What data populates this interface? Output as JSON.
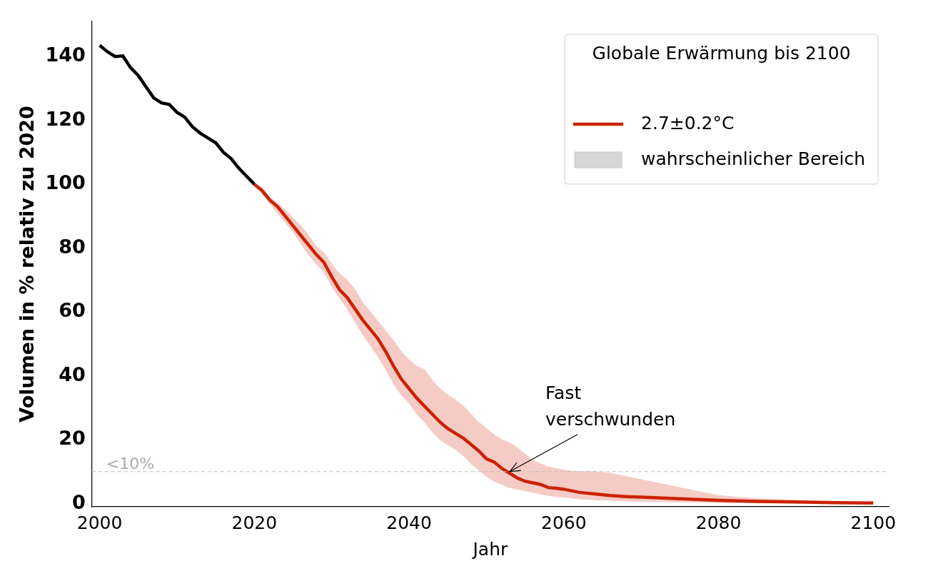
{
  "chart_data": {
    "type": "line",
    "x_label": "Jahr",
    "y_label": "Volumen in % relativ zu 2020",
    "xlim": [
      1999,
      2102
    ],
    "xticks": [
      2000,
      2020,
      2040,
      2060,
      2080,
      2100
    ],
    "ylim": [
      -1,
      151
    ],
    "yticks": [
      0,
      20,
      40,
      60,
      80,
      100,
      120,
      140
    ],
    "grid": false,
    "legend": "upper right",
    "legend_title": "Globale Erwärmung bis 2100",
    "series": [
      {
        "color": "#000000",
        "x": [
          2000,
          2001,
          2002,
          2003,
          2004,
          2005,
          2006,
          2007,
          2008,
          2009,
          2010,
          2011,
          2012,
          2013,
          2014,
          2015,
          2016,
          2017,
          2018,
          2019,
          2020
        ],
        "values": [
          143.5,
          141.5,
          140,
          140.2,
          136.5,
          134,
          130.5,
          127,
          125.5,
          125,
          122.5,
          121,
          118,
          116,
          114.5,
          113,
          110,
          108,
          105,
          102.5,
          100
        ]
      },
      {
        "name": "2.7±0.2°C",
        "color": "#cc2200",
        "x": [
          2020,
          2021,
          2022,
          2023,
          2024,
          2025,
          2026,
          2027,
          2028,
          2029,
          2030,
          2031,
          2032,
          2033,
          2034,
          2035,
          2036,
          2037,
          2038,
          2039,
          2040,
          2041,
          2042,
          2043,
          2044,
          2045,
          2046,
          2047,
          2048,
          2049,
          2050,
          2051,
          2052,
          2053,
          2054,
          2055,
          2056,
          2057,
          2058,
          2059,
          2060,
          2062,
          2064,
          2066,
          2068,
          2070,
          2075,
          2080,
          2085,
          2090,
          2095,
          2100
        ],
        "values": [
          100,
          98,
          95,
          93,
          90,
          87,
          84,
          81,
          78,
          75.5,
          71,
          67,
          64.5,
          61,
          57.5,
          54.5,
          51.5,
          47.5,
          43,
          39,
          36,
          33,
          30.5,
          28,
          25.5,
          23.5,
          22,
          20.5,
          18.5,
          16.5,
          14,
          13,
          11,
          9.5,
          8,
          7,
          6.5,
          6,
          5,
          4.8,
          4.5,
          3.5,
          3,
          2.5,
          2.2,
          2,
          1.5,
          1,
          0.7,
          0.5,
          0.3,
          0.2
        ],
        "band": {
          "name": "wahrscheinlicher Bereich",
          "color": "#f5cbc5",
          "upper": [
            100,
            99,
            96,
            94,
            92,
            89.5,
            87,
            84,
            80.5,
            78.5,
            75,
            72,
            70,
            67,
            63,
            60,
            57,
            54,
            51,
            47.5,
            45,
            43,
            42,
            38.5,
            36,
            34,
            32.5,
            30.5,
            28,
            25.5,
            23.5,
            21.5,
            20,
            19,
            17.5,
            15.5,
            13.5,
            12.5,
            11.5,
            11,
            10.5,
            10,
            10,
            9.5,
            8.5,
            7.5,
            5,
            2.5,
            1.5,
            1,
            0.5,
            0.3
          ],
          "lower": [
            100,
            97,
            94,
            91,
            88,
            85,
            81.5,
            78,
            75,
            72.5,
            68,
            64.5,
            61,
            57,
            53,
            49.5,
            46,
            42,
            37.5,
            34,
            31.5,
            28,
            25.5,
            22.5,
            20,
            18.5,
            17,
            15,
            12.5,
            10.5,
            8.5,
            7,
            6,
            5,
            4.5,
            4,
            3.5,
            3,
            2.5,
            2.2,
            2,
            1.5,
            1.2,
            1,
            0.8,
            0.7,
            0.5,
            0.3,
            0.2,
            0.1,
            0.1,
            0.1
          ]
        }
      }
    ],
    "reference_lines": [
      {
        "y": 10,
        "label": "<10%",
        "line_style": "dashed",
        "color": "#bbbbbb"
      }
    ],
    "annotations": [
      {
        "text": [
          "Fast",
          "verschwunden"
        ],
        "x": 2053,
        "y": 10
      }
    ]
  }
}
